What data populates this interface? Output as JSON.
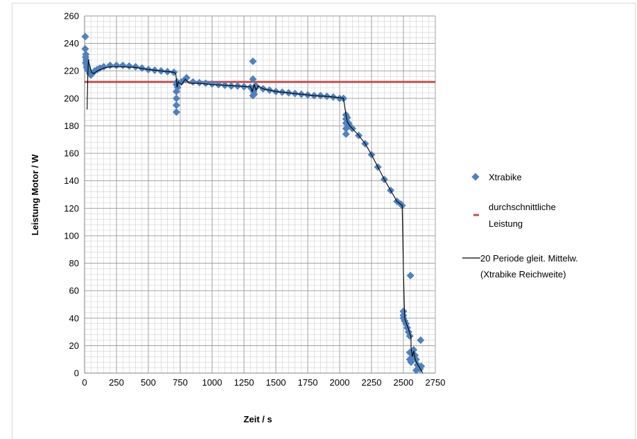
{
  "chart_data": {
    "type": "scatter",
    "title": "",
    "xlabel": "Zeit / s",
    "ylabel": "Leistung Motor / W",
    "xlim": [
      0,
      2750
    ],
    "ylim": [
      0,
      260
    ],
    "xticks": [
      0,
      250,
      500,
      750,
      1000,
      1250,
      1500,
      1750,
      2000,
      2250,
      2500,
      2750
    ],
    "yticks": [
      0,
      20,
      40,
      60,
      80,
      100,
      120,
      140,
      160,
      180,
      200,
      220,
      240,
      260
    ],
    "grid": "major and minor",
    "legend_position": "right",
    "legend": {
      "scatter_label": "Xtrabike",
      "average_label_line1": "durchschnittliche",
      "average_label_line2": "Leistung",
      "moving_avg_label_line1": "20 Periode gleit. Mittelw.",
      "moving_avg_label_line2": "(Xtrabike Reichweite)"
    },
    "colors": {
      "scatter": "#4f81bd",
      "average": "#c0504d",
      "moving_avg": "#000000"
    },
    "average_value": 212,
    "series": [
      {
        "name": "Xtrabike",
        "kind": "scatter",
        "points": [
          [
            5,
            245
          ],
          [
            5,
            236
          ],
          [
            8,
            230
          ],
          [
            8,
            226
          ],
          [
            10,
            232
          ],
          [
            12,
            228
          ],
          [
            14,
            225
          ],
          [
            16,
            223
          ],
          [
            20,
            222
          ],
          [
            25,
            221
          ],
          [
            30,
            220
          ],
          [
            40,
            218
          ],
          [
            50,
            217
          ],
          [
            60,
            218
          ],
          [
            80,
            220
          ],
          [
            100,
            221
          ],
          [
            120,
            222
          ],
          [
            150,
            223
          ],
          [
            200,
            224
          ],
          [
            250,
            224
          ],
          [
            300,
            224
          ],
          [
            350,
            223.5
          ],
          [
            400,
            223
          ],
          [
            450,
            222
          ],
          [
            500,
            221
          ],
          [
            550,
            220.5
          ],
          [
            600,
            220
          ],
          [
            650,
            219.5
          ],
          [
            700,
            219
          ],
          [
            720,
            210
          ],
          [
            720,
            205
          ],
          [
            720,
            200
          ],
          [
            720,
            195
          ],
          [
            720,
            190
          ],
          [
            725,
            212
          ],
          [
            730,
            208
          ],
          [
            760,
            212
          ],
          [
            790,
            214
          ],
          [
            800,
            215
          ],
          [
            850,
            212
          ],
          [
            900,
            211.5
          ],
          [
            950,
            211
          ],
          [
            1000,
            210.5
          ],
          [
            1050,
            210
          ],
          [
            1100,
            209.5
          ],
          [
            1150,
            209
          ],
          [
            1200,
            209
          ],
          [
            1250,
            208.5
          ],
          [
            1300,
            208
          ],
          [
            1320,
            227
          ],
          [
            1320,
            214
          ],
          [
            1320,
            202
          ],
          [
            1325,
            205
          ],
          [
            1330,
            203
          ],
          [
            1340,
            209
          ],
          [
            1350,
            208.5
          ],
          [
            1400,
            207
          ],
          [
            1450,
            206
          ],
          [
            1500,
            205
          ],
          [
            1550,
            204.5
          ],
          [
            1600,
            204
          ],
          [
            1650,
            203.5
          ],
          [
            1700,
            203
          ],
          [
            1750,
            202.5
          ],
          [
            1800,
            202
          ],
          [
            1850,
            202
          ],
          [
            1900,
            201.5
          ],
          [
            1950,
            201
          ],
          [
            2000,
            200
          ],
          [
            2030,
            200
          ],
          [
            2050,
            188
          ],
          [
            2050,
            185
          ],
          [
            2050,
            182
          ],
          [
            2050,
            178
          ],
          [
            2050,
            174
          ],
          [
            2060,
            186
          ],
          [
            2070,
            182
          ],
          [
            2080,
            180
          ],
          [
            2100,
            178
          ],
          [
            2150,
            173
          ],
          [
            2200,
            167
          ],
          [
            2250,
            159
          ],
          [
            2300,
            150
          ],
          [
            2350,
            141
          ],
          [
            2400,
            133
          ],
          [
            2450,
            125
          ],
          [
            2480,
            123
          ],
          [
            2490,
            122
          ],
          [
            2500,
            45
          ],
          [
            2500,
            42
          ],
          [
            2500,
            40
          ],
          [
            2510,
            38
          ],
          [
            2520,
            36
          ],
          [
            2530,
            33
          ],
          [
            2540,
            30
          ],
          [
            2550,
            27
          ],
          [
            2555,
            71
          ],
          [
            2550,
            15
          ],
          [
            2550,
            10
          ],
          [
            2560,
            8
          ],
          [
            2570,
            12
          ],
          [
            2580,
            17
          ],
          [
            2590,
            13
          ],
          [
            2600,
            10
          ],
          [
            2600,
            2
          ],
          [
            2610,
            6
          ],
          [
            2620,
            5
          ],
          [
            2630,
            3
          ],
          [
            2635,
            24
          ],
          [
            2640,
            5
          ]
        ]
      },
      {
        "name": "20 Periode gleit. Mittelw. (Xtrabike Reichweite)",
        "kind": "line",
        "points": [
          [
            20,
            192
          ],
          [
            25,
            215
          ],
          [
            30,
            228
          ],
          [
            40,
            224
          ],
          [
            55,
            219
          ],
          [
            70,
            218
          ],
          [
            100,
            220
          ],
          [
            150,
            222
          ],
          [
            200,
            223
          ],
          [
            300,
            223
          ],
          [
            400,
            222.5
          ],
          [
            500,
            221
          ],
          [
            600,
            220
          ],
          [
            700,
            219
          ],
          [
            715,
            218
          ],
          [
            725,
            208
          ],
          [
            735,
            212
          ],
          [
            760,
            210
          ],
          [
            790,
            214
          ],
          [
            820,
            211
          ],
          [
            900,
            211
          ],
          [
            1000,
            210
          ],
          [
            1100,
            209.5
          ],
          [
            1200,
            209
          ],
          [
            1300,
            208.5
          ],
          [
            1315,
            205
          ],
          [
            1330,
            210
          ],
          [
            1345,
            206
          ],
          [
            1360,
            209
          ],
          [
            1400,
            207
          ],
          [
            1500,
            205
          ],
          [
            1600,
            204
          ],
          [
            1700,
            203
          ],
          [
            1800,
            202
          ],
          [
            1900,
            201.5
          ],
          [
            2000,
            200.5
          ],
          [
            2030,
            200
          ],
          [
            2050,
            188
          ],
          [
            2060,
            183
          ],
          [
            2080,
            180
          ],
          [
            2100,
            178
          ],
          [
            2150,
            173
          ],
          [
            2200,
            167
          ],
          [
            2250,
            159
          ],
          [
            2300,
            150
          ],
          [
            2350,
            141
          ],
          [
            2400,
            133
          ],
          [
            2450,
            125
          ],
          [
            2490,
            122
          ],
          [
            2500,
            75
          ],
          [
            2510,
            40
          ],
          [
            2520,
            37
          ],
          [
            2540,
            32
          ],
          [
            2560,
            26
          ],
          [
            2560,
            18
          ],
          [
            2570,
            12
          ],
          [
            2580,
            16
          ],
          [
            2590,
            11
          ],
          [
            2600,
            8
          ],
          [
            2620,
            5
          ],
          [
            2640,
            2
          ],
          [
            2650,
            0
          ]
        ]
      }
    ]
  }
}
